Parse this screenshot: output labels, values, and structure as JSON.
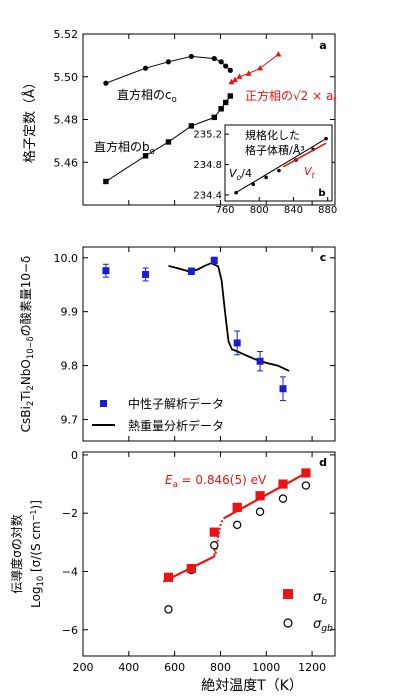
{
  "figure": {
    "x_axis_label": "絶対温度T（K）"
  },
  "chart_data": [
    {
      "panel": "a",
      "type": "line",
      "ylabel": "格子定数（Å）",
      "ylim": [
        5.44,
        5.52
      ],
      "yticks": [
        5.46,
        5.48,
        5.5,
        5.52
      ],
      "ytick_labels": [
        "5.46",
        "5.48",
        "5.50",
        "5.52"
      ],
      "xlim": [
        200,
        1300
      ],
      "x_tick_labels_shown": false,
      "series": [
        {
          "name": "直方相のco",
          "marker": "circle",
          "color": "#000000",
          "x": [
            300,
            473,
            573,
            673,
            773,
            803,
            823,
            843
          ],
          "y": [
            5.497,
            5.504,
            5.507,
            5.5095,
            5.5085,
            5.507,
            5.505,
            5.503
          ]
        },
        {
          "name": "直方相のbo",
          "marker": "square",
          "color": "#000000",
          "x": [
            300,
            473,
            573,
            673,
            773,
            803,
            823,
            843
          ],
          "y": [
            5.451,
            5.463,
            5.4695,
            5.477,
            5.481,
            5.485,
            5.488,
            5.491
          ]
        },
        {
          "name": "正方相の√2×at",
          "marker": "triangle",
          "color": "#ee1111",
          "x": [
            848,
            863,
            883,
            923,
            973,
            1053
          ],
          "y": [
            5.4975,
            5.4985,
            5.5,
            5.5015,
            5.504,
            5.5105
          ]
        }
      ],
      "labels": {
        "co": "直方相のco",
        "bo": "直方相のbo",
        "at": "正方相の√2 × at"
      },
      "inset": {
        "panel": "b",
        "title_line1": "規格化した",
        "title_line2": "格子体積/Å³",
        "xlim": [
          760,
          885
        ],
        "ylim": [
          234.32,
          235.32
        ],
        "xticks": [
          760,
          800,
          840,
          880
        ],
        "xtick_labels": [
          "760",
          "800",
          "840",
          "880"
        ],
        "yticks": [
          234.4,
          234.8,
          235.2
        ],
        "ytick_labels": [
          "234.4",
          "234.8",
          "235.2"
        ],
        "series": [
          {
            "name": "Vo/4",
            "color": "#000000",
            "x": [
              773,
              793,
              808,
              823,
              843,
              863,
              878
            ],
            "y": [
              234.43,
              234.54,
              234.63,
              234.72,
              234.86,
              235.0,
              235.14
            ]
          },
          {
            "name": "Vt",
            "color": "#ee1111",
            "x": [
              828,
              848,
              863,
              878
            ],
            "y": [
              234.77,
              234.88,
              234.98,
              235.08
            ]
          }
        ],
        "labels": {
          "vo": "Vo/4",
          "vt": "Vt"
        }
      }
    },
    {
      "panel": "c",
      "type": "scatter",
      "ylabel": "CsBi2Ti2NbO10−δの酸素量10−δ",
      "ylim": [
        9.66,
        10.02
      ],
      "yticks": [
        9.7,
        9.8,
        9.9,
        10.0
      ],
      "ytick_labels": [
        "9.7",
        "9.8",
        "9.9",
        "10.0"
      ],
      "xlim": [
        200,
        1300
      ],
      "x_tick_labels_shown": false,
      "series": [
        {
          "name": "中性子解析データ",
          "marker": "square",
          "color": "#1b1bd6",
          "x": [
            300,
            473,
            673,
            773,
            873,
            973,
            1073
          ],
          "y": [
            9.976,
            9.969,
            9.975,
            9.995,
            9.842,
            9.808,
            9.757
          ],
          "err": [
            0.012,
            0.012,
            0.006,
            0.006,
            0.022,
            0.018,
            0.022
          ]
        },
        {
          "name": "熱重量分析データ",
          "line": true,
          "color": "#000000",
          "x": [
            573,
            620,
            660,
            700,
            730,
            760,
            790,
            805,
            820,
            835,
            850,
            870,
            900,
            950,
            1000,
            1050,
            1100
          ],
          "y": [
            9.985,
            9.98,
            9.975,
            9.978,
            9.985,
            9.99,
            9.984,
            9.958,
            9.9,
            9.845,
            9.83,
            9.827,
            9.821,
            9.812,
            9.805,
            9.8,
            9.79
          ]
        }
      ],
      "legend": {
        "position": "bottom-left",
        "entries": [
          "中性子解析データ",
          "熱重量分析データ"
        ]
      }
    },
    {
      "panel": "d",
      "type": "scatter",
      "ylabel_line1": "伝導度σの対数",
      "ylabel_line2": "Log10 [σ/(S cm−1)]",
      "ylim": [
        -6.9,
        0.1
      ],
      "yticks": [
        -6,
        -4,
        -2,
        0
      ],
      "ytick_labels": [
        "−6",
        "−4",
        "−2",
        "0"
      ],
      "xlim": [
        200,
        1300
      ],
      "xticks": [
        200,
        400,
        600,
        800,
        1000,
        1200
      ],
      "xtick_labels": [
        "200",
        "400",
        "600",
        "800",
        "1000",
        "1200"
      ],
      "series": [
        {
          "name": "σb",
          "marker": "square",
          "color": "#ee1111",
          "x": [
            573,
            673,
            773,
            873,
            973,
            1073,
            1173
          ],
          "y": [
            -4.2,
            -3.9,
            -2.65,
            -1.8,
            -1.4,
            -1.0,
            -0.62
          ]
        },
        {
          "name": "σgb",
          "marker": "open-circle",
          "color": "#000000",
          "x": [
            573,
            673,
            773,
            873,
            973,
            1073,
            1173
          ],
          "y": [
            -5.3,
            -3.95,
            -3.1,
            -2.4,
            -1.95,
            -1.5,
            -1.05
          ]
        }
      ],
      "annotation": "Ea = 0.846(5) eV",
      "legend_labels": {
        "sb": "σb",
        "sgb": "σgb"
      }
    }
  ]
}
